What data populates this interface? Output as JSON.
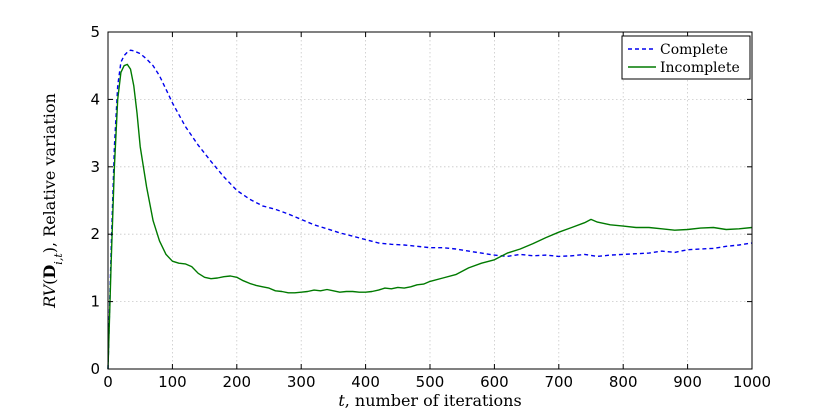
{
  "chart_data": {
    "type": "line",
    "xlabel": "t, number of iterations",
    "ylabel": "RV(D_{i,t}), Relative variation",
    "xlim": [
      0,
      1000
    ],
    "ylim": [
      0,
      5
    ],
    "xticks": [
      "0",
      "100",
      "200",
      "300",
      "400",
      "500",
      "600",
      "700",
      "800",
      "900",
      "1000"
    ],
    "yticks": [
      "0",
      "1",
      "2",
      "3",
      "4",
      "5"
    ],
    "grid": true,
    "legend_position": "top-right",
    "series": [
      {
        "name": "Complete",
        "color": "#0000ee",
        "style": "dashed",
        "x": [
          0,
          5,
          10,
          15,
          20,
          25,
          30,
          35,
          40,
          50,
          60,
          70,
          80,
          90,
          100,
          120,
          140,
          160,
          180,
          200,
          220,
          240,
          260,
          280,
          300,
          320,
          340,
          360,
          380,
          400,
          420,
          440,
          460,
          480,
          500,
          520,
          540,
          560,
          580,
          600,
          620,
          640,
          660,
          680,
          700,
          720,
          740,
          760,
          780,
          800,
          820,
          840,
          860,
          880,
          900,
          920,
          940,
          960,
          980,
          1000
        ],
        "y": [
          0,
          1.8,
          3.3,
          4.2,
          4.55,
          4.65,
          4.7,
          4.73,
          4.72,
          4.68,
          4.6,
          4.5,
          4.35,
          4.15,
          3.95,
          3.6,
          3.32,
          3.08,
          2.85,
          2.65,
          2.52,
          2.42,
          2.37,
          2.3,
          2.22,
          2.14,
          2.08,
          2.02,
          1.97,
          1.92,
          1.87,
          1.85,
          1.84,
          1.82,
          1.8,
          1.8,
          1.78,
          1.75,
          1.72,
          1.69,
          1.67,
          1.7,
          1.68,
          1.69,
          1.67,
          1.68,
          1.7,
          1.67,
          1.69,
          1.7,
          1.71,
          1.72,
          1.75,
          1.73,
          1.77,
          1.78,
          1.79,
          1.82,
          1.84,
          1.87
        ]
      },
      {
        "name": "Incomplete",
        "color": "#007a00",
        "style": "solid",
        "x": [
          0,
          5,
          10,
          15,
          20,
          25,
          30,
          35,
          40,
          45,
          50,
          60,
          70,
          80,
          90,
          100,
          110,
          120,
          130,
          140,
          150,
          160,
          170,
          180,
          190,
          200,
          210,
          220,
          230,
          240,
          250,
          260,
          270,
          280,
          290,
          300,
          310,
          320,
          330,
          340,
          350,
          360,
          370,
          380,
          390,
          400,
          410,
          420,
          430,
          440,
          450,
          460,
          470,
          480,
          490,
          500,
          520,
          540,
          560,
          580,
          600,
          620,
          640,
          660,
          680,
          700,
          720,
          740,
          750,
          760,
          780,
          800,
          820,
          840,
          860,
          880,
          900,
          920,
          940,
          960,
          980,
          1000
        ],
        "y": [
          0,
          1.6,
          3.0,
          4.0,
          4.4,
          4.5,
          4.52,
          4.45,
          4.2,
          3.8,
          3.3,
          2.7,
          2.2,
          1.9,
          1.7,
          1.6,
          1.57,
          1.56,
          1.52,
          1.42,
          1.36,
          1.34,
          1.35,
          1.37,
          1.38,
          1.36,
          1.31,
          1.27,
          1.24,
          1.22,
          1.2,
          1.16,
          1.15,
          1.13,
          1.13,
          1.14,
          1.15,
          1.17,
          1.16,
          1.18,
          1.16,
          1.14,
          1.15,
          1.15,
          1.14,
          1.14,
          1.15,
          1.17,
          1.2,
          1.19,
          1.21,
          1.2,
          1.22,
          1.25,
          1.26,
          1.3,
          1.35,
          1.4,
          1.5,
          1.57,
          1.62,
          1.72,
          1.78,
          1.86,
          1.95,
          2.03,
          2.1,
          2.17,
          2.22,
          2.18,
          2.14,
          2.12,
          2.1,
          2.1,
          2.08,
          2.06,
          2.07,
          2.09,
          2.1,
          2.07,
          2.08,
          2.1
        ]
      }
    ]
  }
}
